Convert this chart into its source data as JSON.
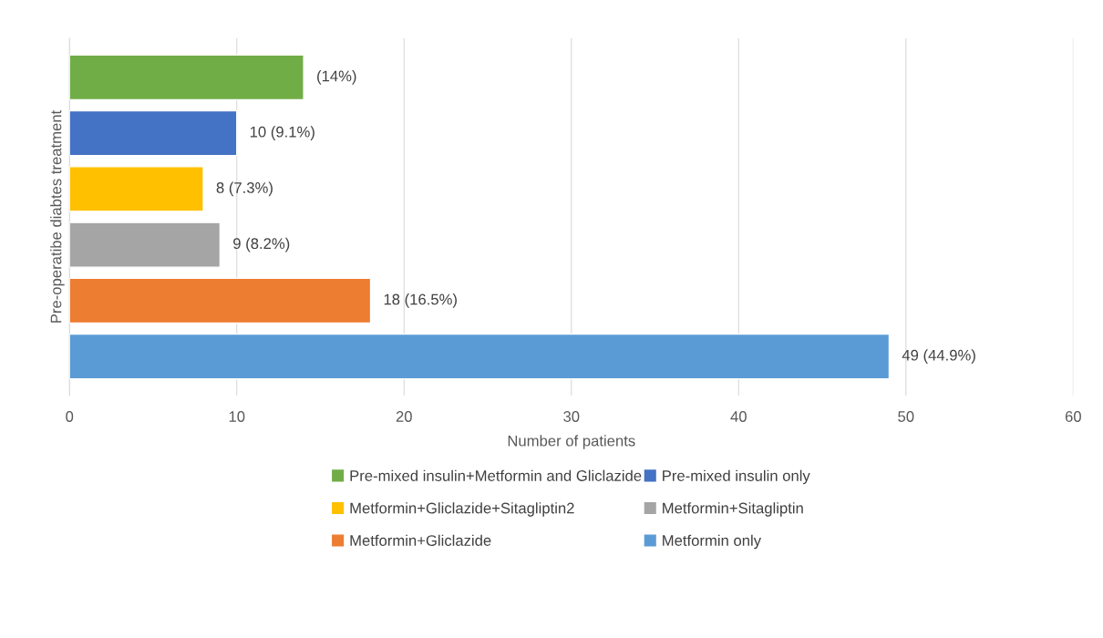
{
  "chart_data": {
    "type": "bar",
    "orientation": "horizontal",
    "xlabel": "Number of patients",
    "ylabel": "Pre-operatibe diabtes treatment",
    "categories": [
      null,
      null,
      null,
      null,
      null,
      null
    ],
    "series": [
      {
        "name": "Pre-mixed insulin+Metformin and Gliclazide",
        "color": "#70ad47",
        "values": [
          14,
          null,
          null,
          null,
          null,
          null
        ],
        "value_labels": [
          "(14%)",
          null,
          null,
          null,
          null,
          null
        ]
      },
      {
        "name": "Pre-mixed insulin only",
        "color": "#4472c4",
        "values": [
          null,
          10,
          null,
          null,
          null,
          null
        ],
        "value_labels": [
          null,
          "10 (9.1%)",
          null,
          null,
          null,
          null
        ]
      },
      {
        "name": "Metformin+Gliclazide+Sitagliptin2",
        "color": "#ffc000",
        "values": [
          null,
          null,
          8,
          null,
          null,
          null
        ],
        "value_labels": [
          null,
          null,
          "8 (7.3%)",
          null,
          null,
          null
        ]
      },
      {
        "name": "Metformin+Sitagliptin",
        "color": "#a5a5a5",
        "values": [
          null,
          null,
          null,
          9,
          null,
          null
        ],
        "value_labels": [
          null,
          null,
          null,
          "9 (8.2%)",
          null,
          null
        ]
      },
      {
        "name": "Metformin+Gliclazide",
        "color": "#ed7d31",
        "values": [
          null,
          null,
          null,
          null,
          18,
          null
        ],
        "value_labels": [
          null,
          null,
          null,
          null,
          "18 (16.5%)",
          null
        ]
      },
      {
        "name": "Metformin only",
        "color": "#5b9bd5",
        "values": [
          null,
          null,
          null,
          null,
          null,
          49
        ],
        "value_labels": [
          null,
          null,
          null,
          null,
          null,
          "49 (44.9%)"
        ]
      }
    ],
    "xlim": [
      0,
      60
    ],
    "xticks": [
      0,
      10,
      20,
      30,
      40,
      50,
      60
    ],
    "grid": "x",
    "legend": "bottom",
    "tick_labels": "x"
  }
}
